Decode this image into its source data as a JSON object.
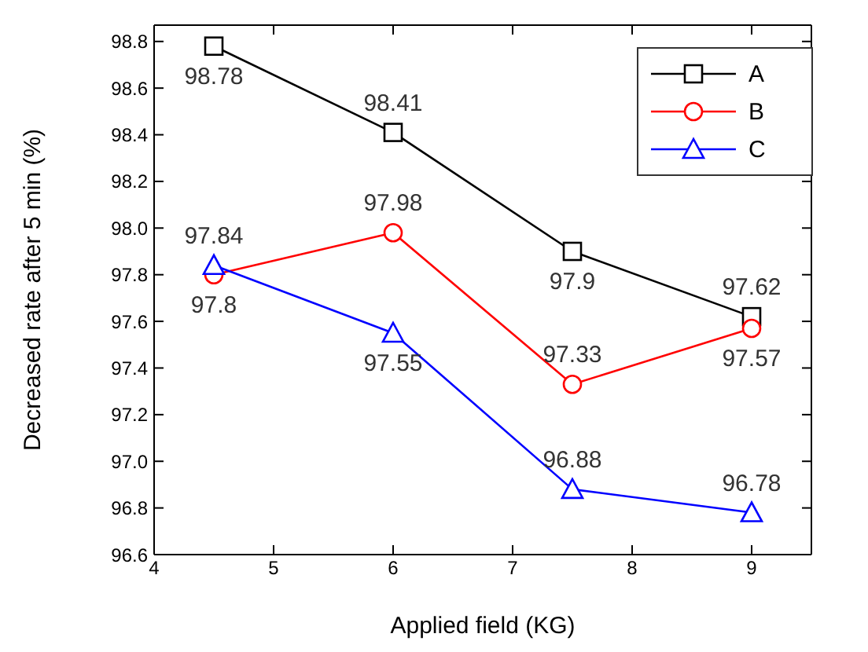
{
  "chart_data": {
    "type": "line",
    "xlabel": "Applied field (KG)",
    "ylabel": "Decreased rate after 5 min (%)",
    "x": [
      4.5,
      6,
      7.5,
      9
    ],
    "series": [
      {
        "name": "A",
        "color": "#000000",
        "marker": "square",
        "values": [
          98.78,
          98.41,
          97.9,
          97.62
        ]
      },
      {
        "name": "B",
        "color": "#ff0000",
        "marker": "circle",
        "values": [
          97.8,
          97.98,
          97.33,
          97.57
        ]
      },
      {
        "name": "C",
        "color": "#0000ff",
        "marker": "triangle",
        "values": [
          97.84,
          97.55,
          96.88,
          96.78
        ]
      }
    ],
    "xlim": [
      4,
      9.5
    ],
    "xticks": [
      4,
      5,
      6,
      7,
      8,
      9
    ],
    "ylim": [
      96.6,
      98.87
    ],
    "yticks": [
      96.6,
      96.8,
      {
        "value": 97,
        "label": "97.0"
      },
      97.2,
      97.4,
      97.6,
      97.8,
      {
        "value": 98,
        "label": "98.0"
      },
      98.2,
      98.4,
      98.6,
      98.8
    ],
    "data_labels": true,
    "legend": "top right",
    "grid": false
  }
}
